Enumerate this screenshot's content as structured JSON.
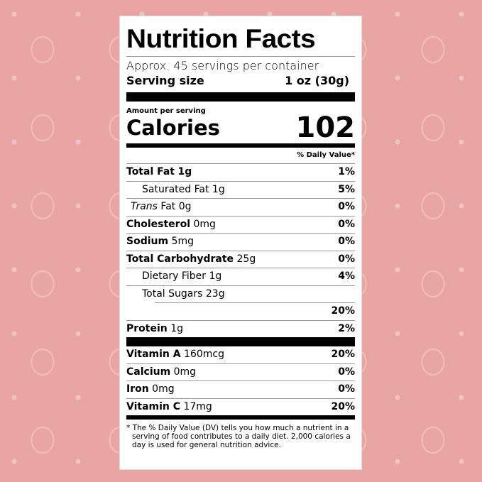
{
  "title": "Nutrition Facts",
  "servings": "Approx. 45 servings per container",
  "serving_size_label": "Serving size",
  "serving_size_value": "1 oz (30g)",
  "amount_per_serving": "Amount per serving",
  "calories_label": "Calories",
  "calories_value": "102",
  "daily_value_header": "% Daily Value*",
  "nutrients": [
    {
      "name": "Total Fat",
      "amount": "1g",
      "dv": "1%"
    },
    {
      "name": "Saturated Fat",
      "amount": "1g",
      "dv": "5%"
    },
    {
      "name": "Trans",
      "name2": "Fat 0g",
      "dv": "0%"
    },
    {
      "name": "Cholesterol",
      "amount": "0mg",
      "dv": "0%"
    },
    {
      "name": "Sodium",
      "amount": "5mg",
      "dv": "0%"
    },
    {
      "name": "Total Carbohydrate",
      "amount": "25g",
      "dv": "0%"
    },
    {
      "name": "Dietary Fiber",
      "amount": "1g",
      "dv": "4%"
    },
    {
      "name": "Total Sugars",
      "amount": "23g",
      "dv": ""
    },
    {
      "name": "",
      "amount": "",
      "dv": "20%"
    },
    {
      "name": "Protein",
      "amount": "1g",
      "dv": "2%"
    }
  ],
  "vitamins": [
    {
      "name": "Vitamin A",
      "amount": "160mcg",
      "dv": "20%"
    },
    {
      "name": "Calcium",
      "amount": "0mg",
      "dv": "0%"
    },
    {
      "name": "Iron",
      "amount": "0mg",
      "dv": "0%"
    },
    {
      "name": "Vitamin C",
      "amount": "17mg",
      "dv": "20%"
    }
  ],
  "footnote": "* The % Daily Value (DV) tells you how much a nutrient in a serving of food contributes to a daily diet. 2,000 calories a day is used for general nutrition advice.",
  "colors": {
    "background": "#e9a5a4",
    "label": "#ffffff"
  }
}
